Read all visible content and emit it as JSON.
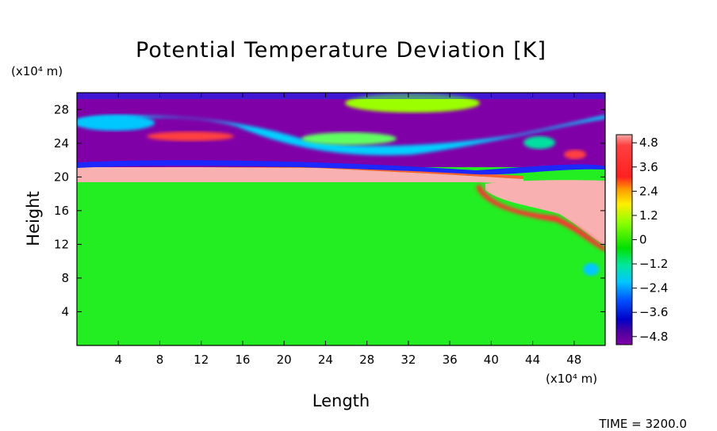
{
  "chart_data": {
    "type": "heatmap",
    "title": "Potential Temperature Deviation [K]",
    "xlabel": "Length",
    "ylabel": "Height",
    "x_unit": "(x10⁴ m)",
    "y_unit": "(x10⁴ m)",
    "xlim": [
      0,
      51
    ],
    "ylim": [
      0,
      30
    ],
    "x_ticks": [
      4,
      8,
      12,
      16,
      20,
      24,
      28,
      32,
      36,
      40,
      44,
      48
    ],
    "y_ticks": [
      4,
      8,
      12,
      16,
      20,
      24,
      28
    ],
    "colorbar": {
      "min": -5.2,
      "max": 5.2,
      "ticks": [
        "4.8",
        "3.6",
        "2.4",
        "1.2",
        "0",
        "−1.2",
        "−2.4",
        "−3.6",
        "−4.8"
      ],
      "tick_values": [
        4.8,
        3.6,
        2.4,
        1.2,
        0,
        -1.2,
        -2.4,
        -3.6,
        -4.8
      ]
    },
    "fields": {
      "background_value": 0,
      "warm_layer": {
        "value": 4.8,
        "height_range": [
          19.5,
          21
        ]
      },
      "upper_cold_layer": {
        "value": -4.8,
        "height_range": [
          21,
          30
        ]
      },
      "warm_plume": {
        "value": 4.8,
        "length_range": [
          40,
          51
        ],
        "height_range": [
          12,
          20
        ]
      }
    }
  },
  "footer": {
    "time": "TIME = 3200.0"
  }
}
